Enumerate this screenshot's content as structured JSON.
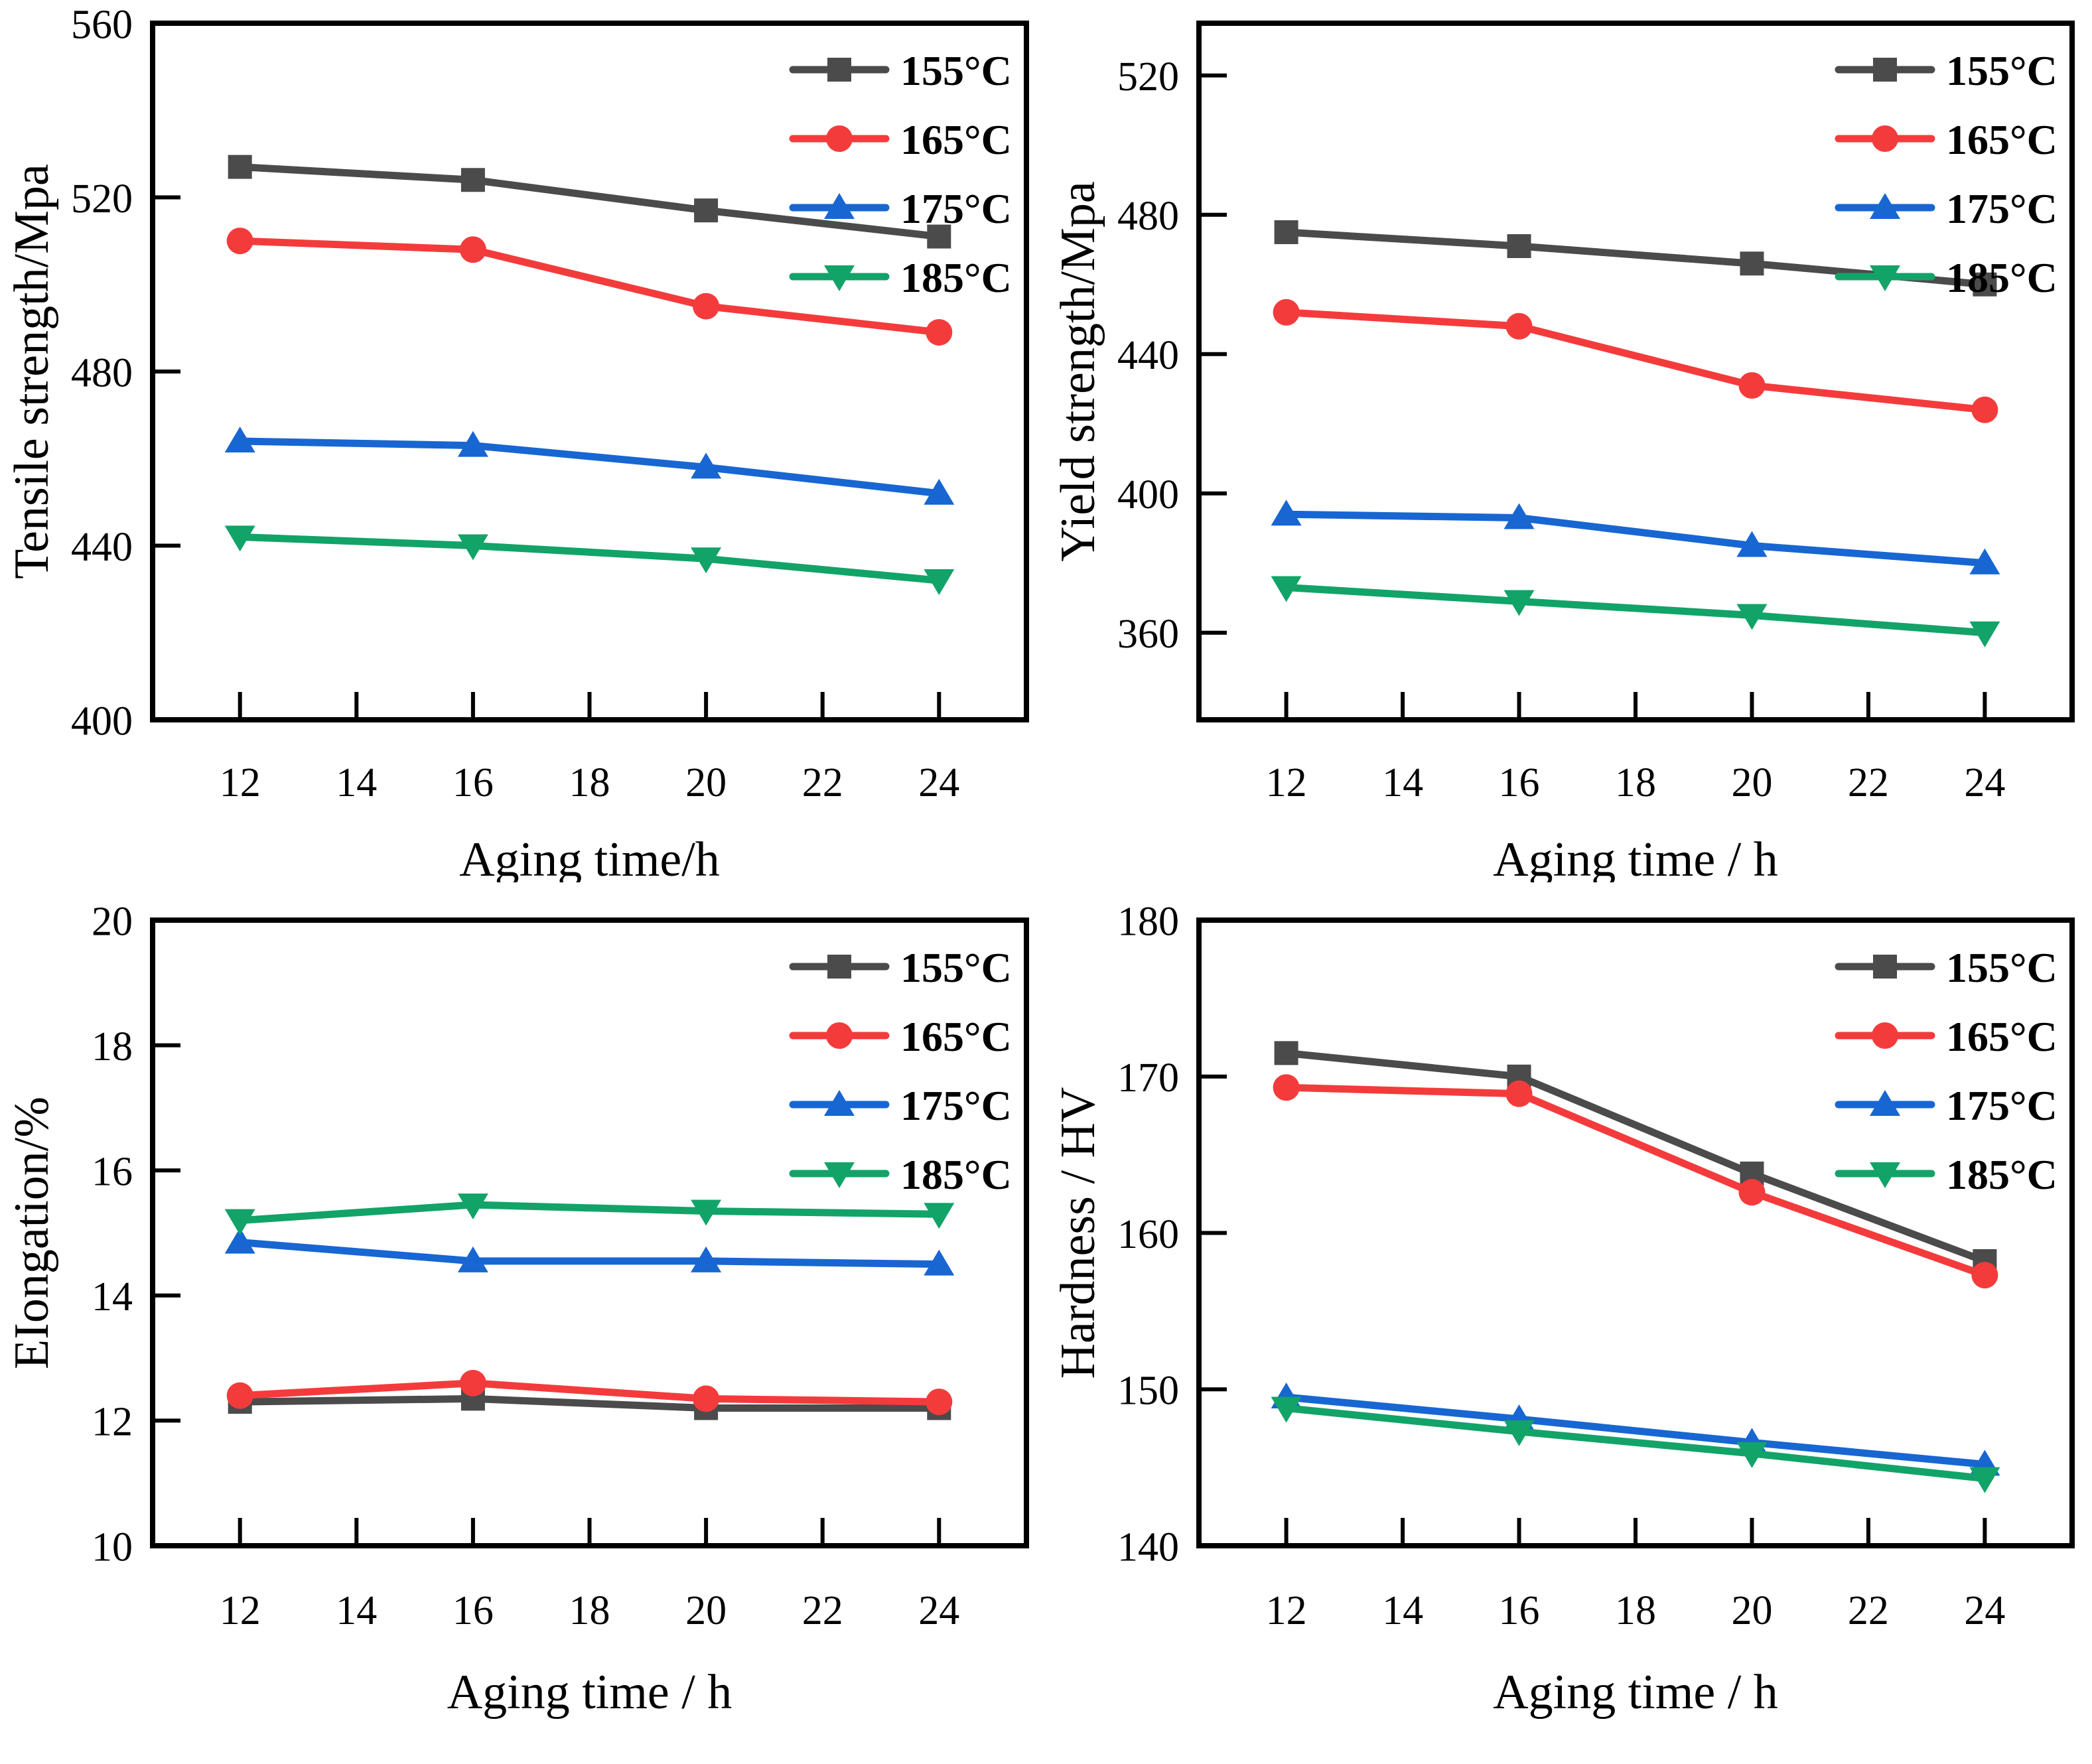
{
  "page": {
    "background": "#ffffff"
  },
  "colors": {
    "axis": "#000000",
    "gray": "#4b4b4b",
    "red": "#f43b3c",
    "blue": "#1766d2",
    "green": "#12a368"
  },
  "legend": {
    "entries": [
      {
        "label": "155°C",
        "color_key": "gray",
        "marker": "square"
      },
      {
        "label": "165°C",
        "color_key": "red",
        "marker": "circle"
      },
      {
        "label": "175°C",
        "color_key": "blue",
        "marker": "triangle-up"
      },
      {
        "label": "185°C",
        "color_key": "green",
        "marker": "triangle-down"
      }
    ]
  },
  "chart_data": [
    {
      "type": "line",
      "name": "tensile-strength",
      "xlabel": "Aging time/h",
      "ylabel": "Tensile strength/Mpa",
      "xlim": [
        10.5,
        25.5
      ],
      "ylim": [
        400,
        560
      ],
      "xticks": [
        12,
        14,
        16,
        18,
        20,
        22,
        24
      ],
      "yticks": [
        400,
        440,
        480,
        520,
        560
      ],
      "x": [
        12,
        16,
        20,
        24
      ],
      "grid": false,
      "legend_position": "top-right",
      "series": [
        {
          "name": "155°C",
          "color_key": "gray",
          "marker": "square",
          "values": [
            527,
            524,
            517,
            511
          ]
        },
        {
          "name": "165°C",
          "color_key": "red",
          "marker": "circle",
          "values": [
            510,
            508,
            495,
            489
          ]
        },
        {
          "name": "175°C",
          "color_key": "blue",
          "marker": "triangle-up",
          "values": [
            464,
            463,
            458,
            452
          ]
        },
        {
          "name": "185°C",
          "color_key": "green",
          "marker": "triangle-down",
          "values": [
            442,
            440,
            437,
            432
          ]
        }
      ]
    },
    {
      "type": "line",
      "name": "yield-strength",
      "xlabel": "Aging time / h",
      "ylabel": "Yield strength/Mpa",
      "xlim": [
        10.5,
        25.5
      ],
      "ylim": [
        335,
        535
      ],
      "xticks": [
        12,
        14,
        16,
        18,
        20,
        22,
        24
      ],
      "yticks": [
        360,
        400,
        440,
        480,
        520
      ],
      "x": [
        12,
        16,
        20,
        24
      ],
      "grid": false,
      "legend_position": "top-right",
      "series": [
        {
          "name": "155°C",
          "color_key": "gray",
          "marker": "square",
          "values": [
            475,
            471,
            466,
            460
          ]
        },
        {
          "name": "165°C",
          "color_key": "red",
          "marker": "circle",
          "values": [
            452,
            448,
            431,
            424
          ]
        },
        {
          "name": "175°C",
          "color_key": "blue",
          "marker": "triangle-up",
          "values": [
            394,
            393,
            385,
            380
          ]
        },
        {
          "name": "185°C",
          "color_key": "green",
          "marker": "triangle-down",
          "values": [
            373,
            369,
            365,
            360
          ]
        }
      ]
    },
    {
      "type": "line",
      "name": "elongation",
      "xlabel": "Aging time / h",
      "ylabel": "EIongation/%",
      "xlim": [
        10.5,
        25.5
      ],
      "ylim": [
        10,
        20
      ],
      "xticks": [
        12,
        14,
        16,
        18,
        20,
        22,
        24
      ],
      "yticks": [
        10,
        12,
        14,
        16,
        18,
        20
      ],
      "x": [
        12,
        16,
        20,
        24
      ],
      "grid": false,
      "legend_position": "top-right",
      "series": [
        {
          "name": "155°C",
          "color_key": "gray",
          "marker": "square",
          "values": [
            12.3,
            12.35,
            12.2,
            12.2
          ]
        },
        {
          "name": "165°C",
          "color_key": "red",
          "marker": "circle",
          "values": [
            12.4,
            12.6,
            12.35,
            12.3
          ]
        },
        {
          "name": "175°C",
          "color_key": "blue",
          "marker": "triangle-up",
          "values": [
            14.85,
            14.55,
            14.55,
            14.5
          ]
        },
        {
          "name": "185°C",
          "color_key": "green",
          "marker": "triangle-down",
          "values": [
            15.2,
            15.45,
            15.35,
            15.3
          ]
        }
      ]
    },
    {
      "type": "line",
      "name": "hardness",
      "xlabel": "Aging time / h",
      "ylabel": "Hardness / HV",
      "xlim": [
        10.5,
        25.5
      ],
      "ylim": [
        140,
        180
      ],
      "xticks": [
        12,
        14,
        16,
        18,
        20,
        22,
        24
      ],
      "yticks": [
        140,
        150,
        160,
        170,
        180
      ],
      "x": [
        12,
        16,
        20,
        24
      ],
      "grid": false,
      "legend_position": "top-right",
      "series": [
        {
          "name": "155°C",
          "color_key": "gray",
          "marker": "square",
          "values": [
            171.5,
            170.0,
            163.8,
            158.2
          ]
        },
        {
          "name": "165°C",
          "color_key": "red",
          "marker": "circle",
          "values": [
            169.3,
            168.9,
            162.6,
            157.3
          ]
        },
        {
          "name": "175°C",
          "color_key": "blue",
          "marker": "triangle-up",
          "values": [
            149.5,
            148.1,
            146.6,
            145.2
          ]
        },
        {
          "name": "185°C",
          "color_key": "green",
          "marker": "triangle-down",
          "values": [
            148.8,
            147.3,
            145.9,
            144.3
          ]
        }
      ]
    }
  ]
}
